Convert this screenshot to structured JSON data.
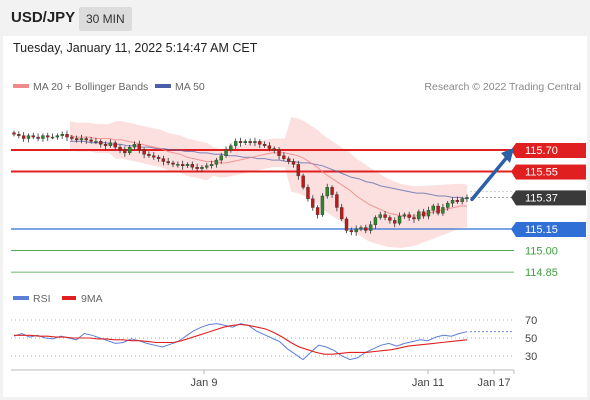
{
  "header": {
    "symbol": "USD/JPY",
    "timeframe": "30 MIN"
  },
  "timestamp": "Tuesday, January 11, 2022 5:14:47 AM CET",
  "legend": {
    "ma20_label": "MA 20 + Bollinger Bands",
    "ma50_label": "MA 50",
    "credit": "Research © 2022 Trading Central"
  },
  "rsi_legend": {
    "rsi_label": "RSI",
    "ma9_label": "9MA"
  },
  "colors": {
    "ma20": "#f08a8a",
    "ma50": "#4a5fa8",
    "bands_fill": "#fbd9d9",
    "resistance": "#e02020",
    "support": "#2f6fd6",
    "target": "#3ca040",
    "price_tag": "#3a3a3a",
    "arrow": "#2b5fa8",
    "rsi": "#5b7fd8",
    "rsi_ma": "#e02020"
  },
  "chart_data": [
    {
      "type": "candlestick",
      "x_ticks": [
        "Jan 9",
        "Jan 11",
        "Jan 17"
      ],
      "ylim": [
        114.7,
        115.9
      ],
      "current_price": 115.37,
      "levels": [
        {
          "value": 115.7,
          "label": "115.70",
          "kind": "resistance"
        },
        {
          "value": 115.55,
          "label": "115.55",
          "kind": "resistance"
        },
        {
          "value": 115.37,
          "label": "115.37",
          "kind": "current"
        },
        {
          "value": 115.15,
          "label": "115.15",
          "kind": "support"
        },
        {
          "value": 115.0,
          "label": "115.00",
          "kind": "target"
        },
        {
          "value": 114.85,
          "label": "114.85",
          "kind": "target"
        }
      ],
      "close": [
        115.81,
        115.8,
        115.78,
        115.8,
        115.79,
        115.78,
        115.8,
        115.79,
        115.79,
        115.8,
        115.81,
        115.79,
        115.78,
        115.77,
        115.78,
        115.77,
        115.76,
        115.76,
        115.74,
        115.73,
        115.75,
        115.72,
        115.7,
        115.68,
        115.72,
        115.74,
        115.7,
        115.67,
        115.66,
        115.65,
        115.64,
        115.62,
        115.61,
        115.6,
        115.6,
        115.59,
        115.6,
        115.58,
        115.57,
        115.58,
        115.59,
        115.6,
        115.63,
        115.66,
        115.7,
        115.73,
        115.76,
        115.75,
        115.76,
        115.75,
        115.76,
        115.74,
        115.73,
        115.71,
        115.7,
        115.66,
        115.64,
        115.62,
        115.6,
        115.52,
        115.44,
        115.36,
        115.3,
        115.25,
        115.38,
        115.44,
        115.39,
        115.3,
        115.22,
        115.14,
        115.13,
        115.15,
        115.16,
        115.14,
        115.18,
        115.23,
        115.25,
        115.23,
        115.21,
        115.19,
        115.24,
        115.25,
        115.23,
        115.22,
        115.27,
        115.24,
        115.28,
        115.31,
        115.26,
        115.3,
        115.33,
        115.35,
        115.34,
        115.36,
        115.37
      ],
      "ma20": [
        115.8,
        115.79,
        115.79,
        115.79,
        115.78,
        115.78,
        115.78,
        115.77,
        115.77,
        115.76,
        115.75,
        115.74,
        115.73,
        115.72,
        115.71,
        115.69,
        115.68,
        115.67,
        115.65,
        115.64,
        115.63,
        115.62,
        115.62,
        115.61,
        115.61,
        115.62,
        115.63,
        115.64,
        115.65,
        115.66,
        115.67,
        115.68,
        115.68,
        115.68,
        115.67,
        115.66,
        115.64,
        115.61,
        115.58,
        115.54,
        115.51,
        115.48,
        115.45,
        115.42,
        115.38,
        115.35,
        115.32,
        115.3,
        115.28,
        115.26,
        115.25,
        115.24,
        115.24,
        115.24,
        115.25,
        115.26,
        115.27,
        115.28,
        115.29,
        115.3,
        115.31,
        115.31
      ],
      "ma50": [
        115.76,
        115.76,
        115.76,
        115.75,
        115.75,
        115.75,
        115.74,
        115.74,
        115.73,
        115.73,
        115.72,
        115.72,
        115.71,
        115.71,
        115.7,
        115.7,
        115.69,
        115.69,
        115.68,
        115.68,
        115.67,
        115.67,
        115.66,
        115.66,
        115.65,
        115.65,
        115.64,
        115.64,
        115.63,
        115.63,
        115.62,
        115.62,
        115.61,
        115.61,
        115.6,
        115.59,
        115.57,
        115.55,
        115.53,
        115.51,
        115.5,
        115.48,
        115.47,
        115.45,
        115.44,
        115.43,
        115.42,
        115.41,
        115.4,
        115.4,
        115.39,
        115.38,
        115.38,
        115.37,
        115.37,
        115.36
      ]
    },
    {
      "type": "line",
      "title": "RSI",
      "y_ticks": [
        70,
        50,
        30
      ],
      "ylim": [
        10,
        90
      ],
      "rsi": [
        52,
        55,
        51,
        53,
        50,
        49,
        52,
        50,
        48,
        55,
        53,
        50,
        47,
        44,
        45,
        49,
        47,
        44,
        42,
        40,
        43,
        46,
        52,
        58,
        62,
        65,
        66,
        64,
        62,
        66,
        64,
        58,
        54,
        50,
        46,
        38,
        32,
        26,
        34,
        42,
        40,
        36,
        30,
        26,
        28,
        34,
        38,
        42,
        44,
        41,
        44,
        46,
        48,
        47,
        51,
        53,
        52,
        55,
        57
      ],
      "ma9": [
        53,
        53,
        53,
        52,
        52,
        51,
        51,
        50,
        50,
        50,
        49,
        49,
        48,
        48,
        47,
        47,
        46,
        45,
        45,
        45,
        47,
        50,
        53,
        56,
        59,
        62,
        64,
        65,
        64,
        62,
        60,
        56,
        51,
        45,
        40,
        37,
        34,
        32,
        32,
        33,
        34,
        34,
        34,
        35,
        36,
        37,
        39,
        41,
        42,
        43,
        44,
        45,
        46,
        47,
        48
      ]
    }
  ]
}
